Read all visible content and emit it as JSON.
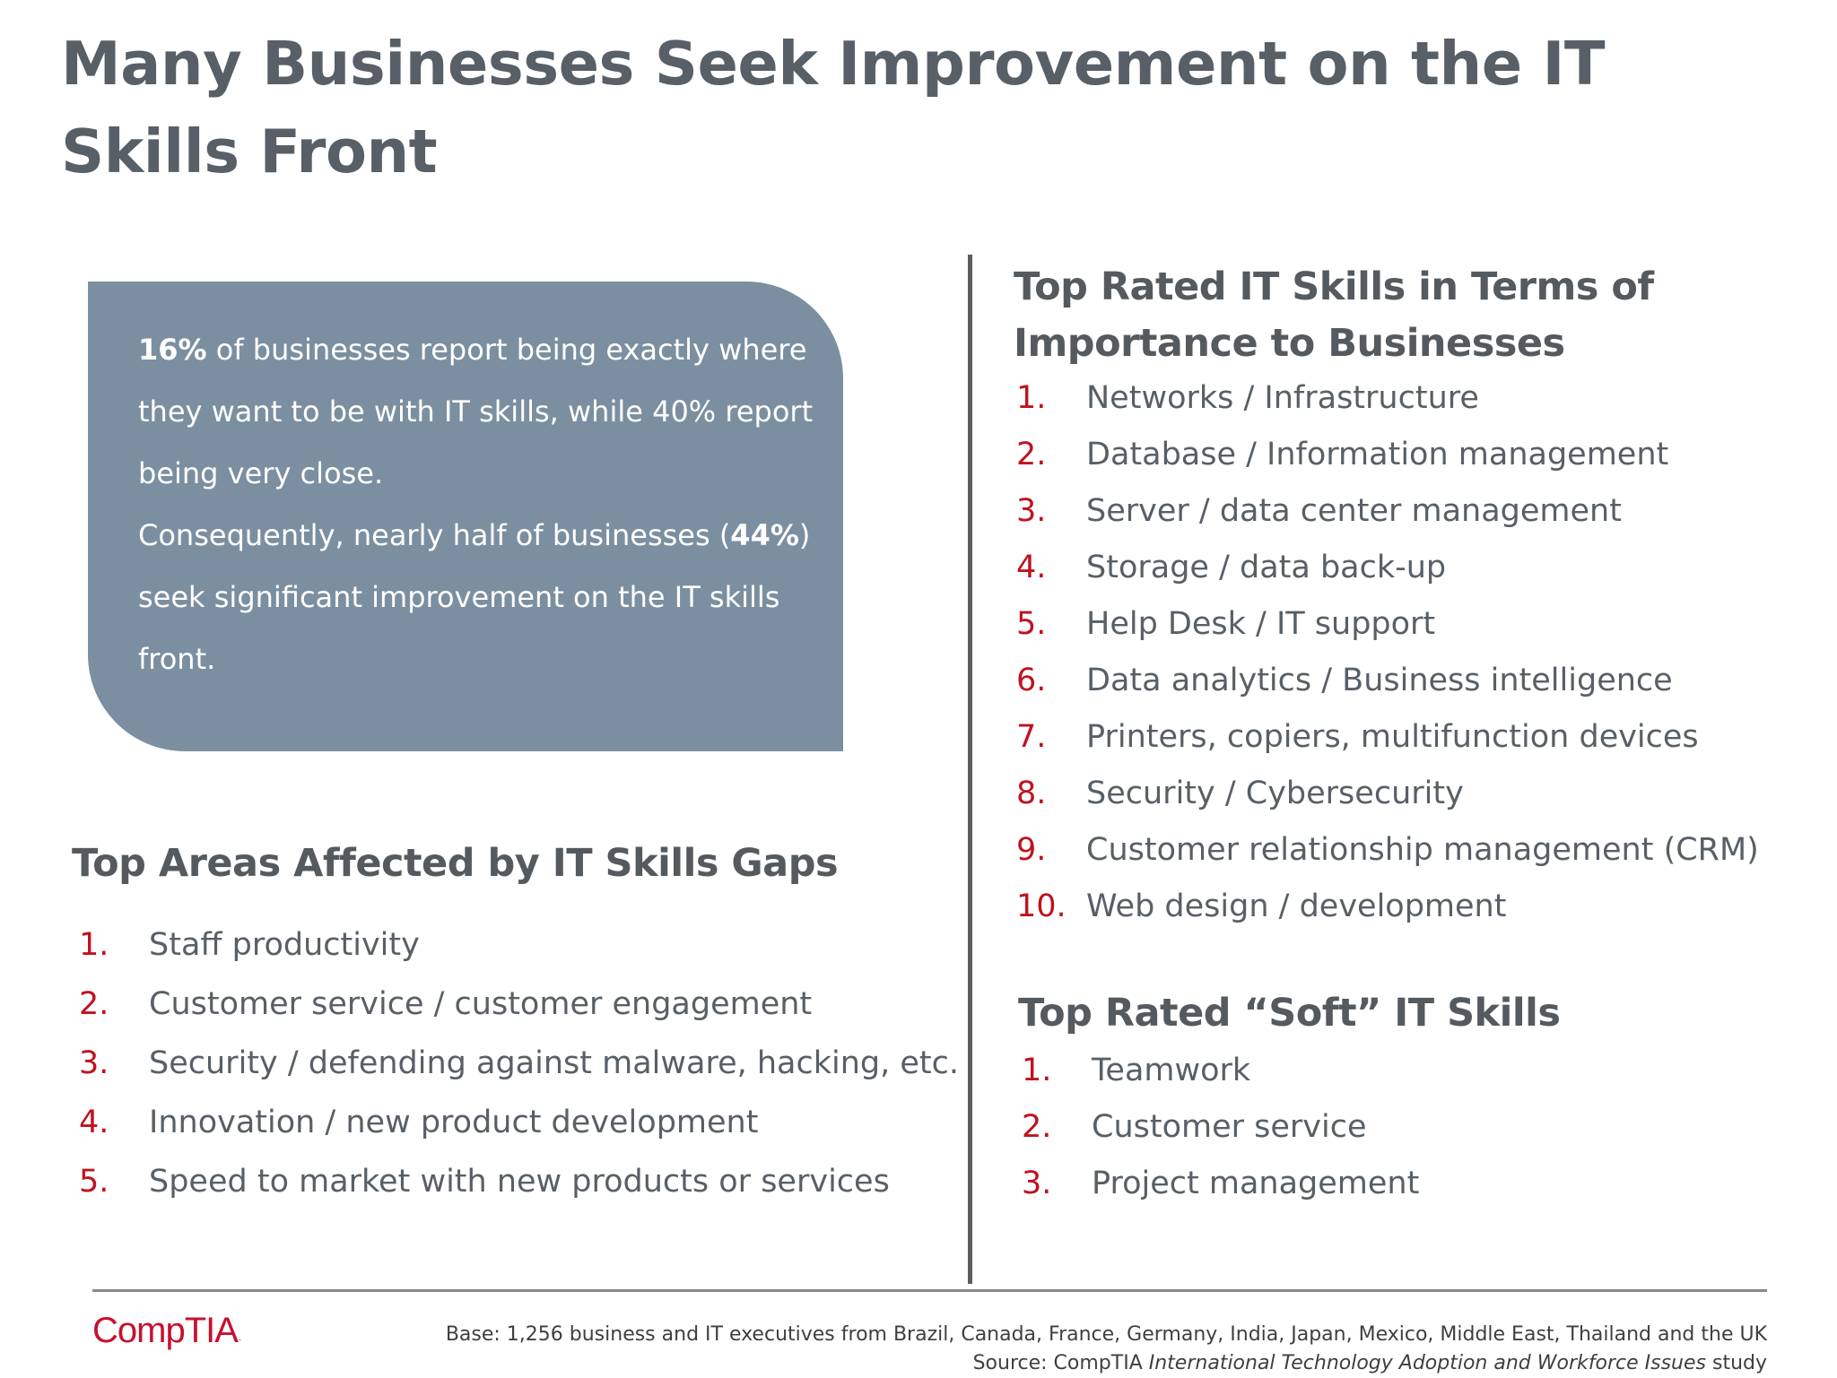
{
  "title": "Many Businesses Seek Improvement on the IT Skills Front",
  "callout": {
    "p1_bold": "16%",
    "p1_rest": " of businesses report being exactly where they want to be with IT skills, while 40% report being very close.",
    "p2_start": "Consequently, nearly half of businesses (",
    "p2_bold": "44%",
    "p2_end": ") seek significant improvement on the IT skills front."
  },
  "areas": {
    "heading": "Top Areas Affected by IT Skills Gaps",
    "items": [
      {
        "num": "1.",
        "text": "Staff productivity"
      },
      {
        "num": "2.",
        "text": "Customer service / customer engagement"
      },
      {
        "num": "3.",
        "text": "Security / defending against malware, hacking, etc."
      },
      {
        "num": "4.",
        "text": "Innovation / new product development"
      },
      {
        "num": "5.",
        "text": "Speed to market with new products or services"
      }
    ]
  },
  "top_skills": {
    "heading_line1": "Top Rated IT Skills in Terms of",
    "heading_line2": "Importance to Businesses",
    "items": [
      {
        "num": "1.",
        "text": "Networks / Infrastructure"
      },
      {
        "num": "2.",
        "text": "Database / Information management"
      },
      {
        "num": "3.",
        "text": "Server / data center management"
      },
      {
        "num": "4.",
        "text": "Storage / data back-up"
      },
      {
        "num": "5.",
        "text": "Help Desk / IT support"
      },
      {
        "num": "6.",
        "text": "Data analytics / Business intelligence"
      },
      {
        "num": "7.",
        "text": "Printers, copiers, multifunction devices"
      },
      {
        "num": "8.",
        "text": "Security / Cybersecurity"
      },
      {
        "num": "9.",
        "text": "Customer relationship management (CRM)"
      },
      {
        "num": "10.",
        "text": "Web design / development"
      }
    ]
  },
  "soft_skills": {
    "heading": "Top Rated “Soft” IT Skills",
    "items": [
      {
        "num": "1.",
        "text": "Teamwork"
      },
      {
        "num": "2.",
        "text": "Customer service"
      },
      {
        "num": "3.",
        "text": "Project management"
      }
    ]
  },
  "logo": {
    "text": "CompTIA",
    "tm": "."
  },
  "footer": {
    "base": "Base: 1,256 business and IT executives from Brazil, Canada, France, Germany, India, Japan, Mexico, Middle East, Thailand and the UK",
    "source_prefix": "Source: CompTIA ",
    "source_italic": "International Technology Adoption and Workforce Issues",
    "source_suffix": " study"
  },
  "colors": {
    "accent_number": "#c0121f",
    "callout_bg": "#7c8fa0",
    "heading": "#555a5f"
  }
}
